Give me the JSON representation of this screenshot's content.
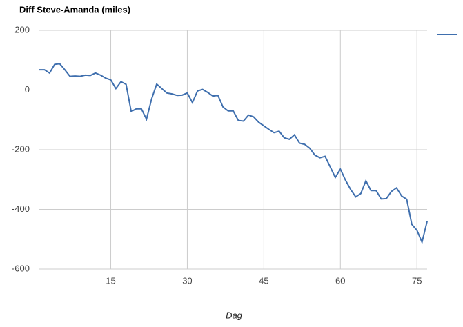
{
  "chart_data": {
    "type": "line",
    "title": "Diff Steve-Amanda (miles)",
    "x_label": "Dag",
    "x": [
      1,
      2,
      3,
      4,
      5,
      6,
      7,
      8,
      9,
      10,
      11,
      12,
      13,
      14,
      15,
      16,
      17,
      18,
      19,
      20,
      21,
      22,
      23,
      24,
      25,
      26,
      27,
      28,
      29,
      30,
      31,
      32,
      33,
      34,
      35,
      36,
      37,
      38,
      39,
      40,
      41,
      42,
      43,
      44,
      45,
      46,
      47,
      48,
      49,
      50,
      51,
      52,
      53,
      54,
      55,
      56,
      57,
      58,
      59,
      60,
      61,
      62,
      63,
      64,
      65,
      66,
      67,
      68,
      69,
      70,
      71,
      72,
      73,
      74,
      75,
      76,
      77
    ],
    "series": [
      {
        "color": "#3f6fae",
        "values": [
          68,
          68,
          57,
          86,
          88,
          68,
          46,
          47,
          46,
          50,
          49,
          57,
          50,
          40,
          34,
          5,
          28,
          19,
          -72,
          -63,
          -63,
          -98,
          -30,
          20,
          5,
          -10,
          -13,
          -18,
          -17,
          -10,
          -42,
          -3,
          2,
          -8,
          -20,
          -18,
          -57,
          -70,
          -70,
          -102,
          -104,
          -84,
          -90,
          -108,
          -120,
          -132,
          -143,
          -138,
          -160,
          -165,
          -150,
          -178,
          -182,
          -195,
          -218,
          -227,
          -222,
          -257,
          -293,
          -265,
          -302,
          -333,
          -358,
          -347,
          -304,
          -337,
          -337,
          -365,
          -364,
          -340,
          -328,
          -355,
          -366,
          -450,
          -470,
          -510,
          -440
        ]
      }
    ],
    "xlim": [
      1,
      77
    ],
    "xticks": [
      15,
      30,
      45,
      60,
      75
    ],
    "ylim": [
      -600,
      200
    ],
    "yticks": [
      -600,
      -400,
      -200,
      0,
      200
    ],
    "grid": true,
    "legend": "top-right"
  }
}
